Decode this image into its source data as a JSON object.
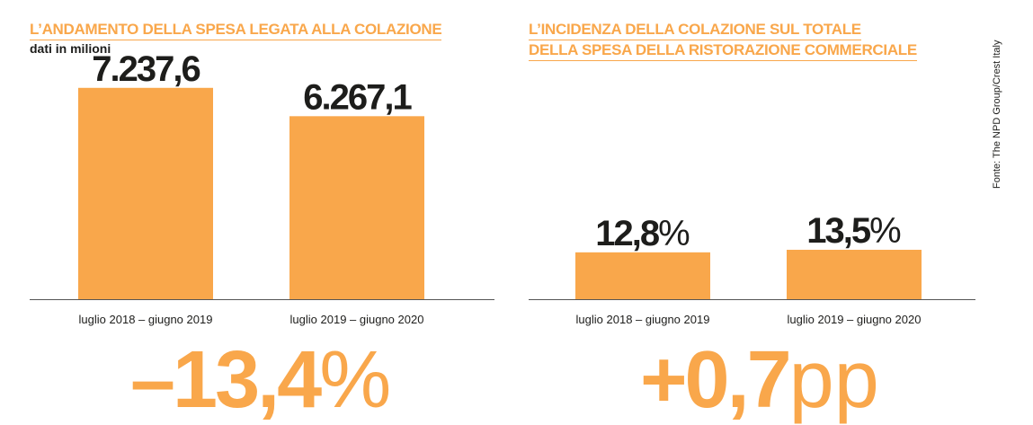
{
  "source": "Fonte: The NPD Group/Crest Italy",
  "colors": {
    "accent": "#f9a74b",
    "text": "#1d1d1b"
  },
  "chart_data": [
    {
      "type": "bar",
      "title_lines": [
        "L’ANDAMENTO DELLA SPESA LEGATA ALLA COLAZIONE"
      ],
      "subtitle": "dati in milioni",
      "categories": [
        "luglio 2018 – giugno 2019",
        "luglio 2019 – giugno 2020"
      ],
      "values": [
        7237.6,
        6267.1
      ],
      "value_labels": [
        {
          "num": "7.237,6",
          "unit": ""
        },
        {
          "num": "6.267,1",
          "unit": ""
        }
      ],
      "ylim": [
        0,
        8400
      ],
      "grid": false,
      "summary": {
        "num": "–13,4",
        "unit": "%"
      }
    },
    {
      "type": "bar",
      "title_lines": [
        "L’INCIDENZA DELLA COLAZIONE SUL TOTALE",
        "DELLA SPESA DELLA RISTORAZIONE COMMERCIALE"
      ],
      "categories": [
        "luglio 2018 – giugno 2019",
        "luglio 2019 – giugno 2020"
      ],
      "values": [
        12.8,
        13.5
      ],
      "value_labels": [
        {
          "num": "12,8",
          "unit": "%"
        },
        {
          "num": "13,5",
          "unit": "%"
        }
      ],
      "ylim": [
        0,
        67
      ],
      "grid": false,
      "summary": {
        "num": "+0,7",
        "unit": "pp"
      }
    }
  ]
}
